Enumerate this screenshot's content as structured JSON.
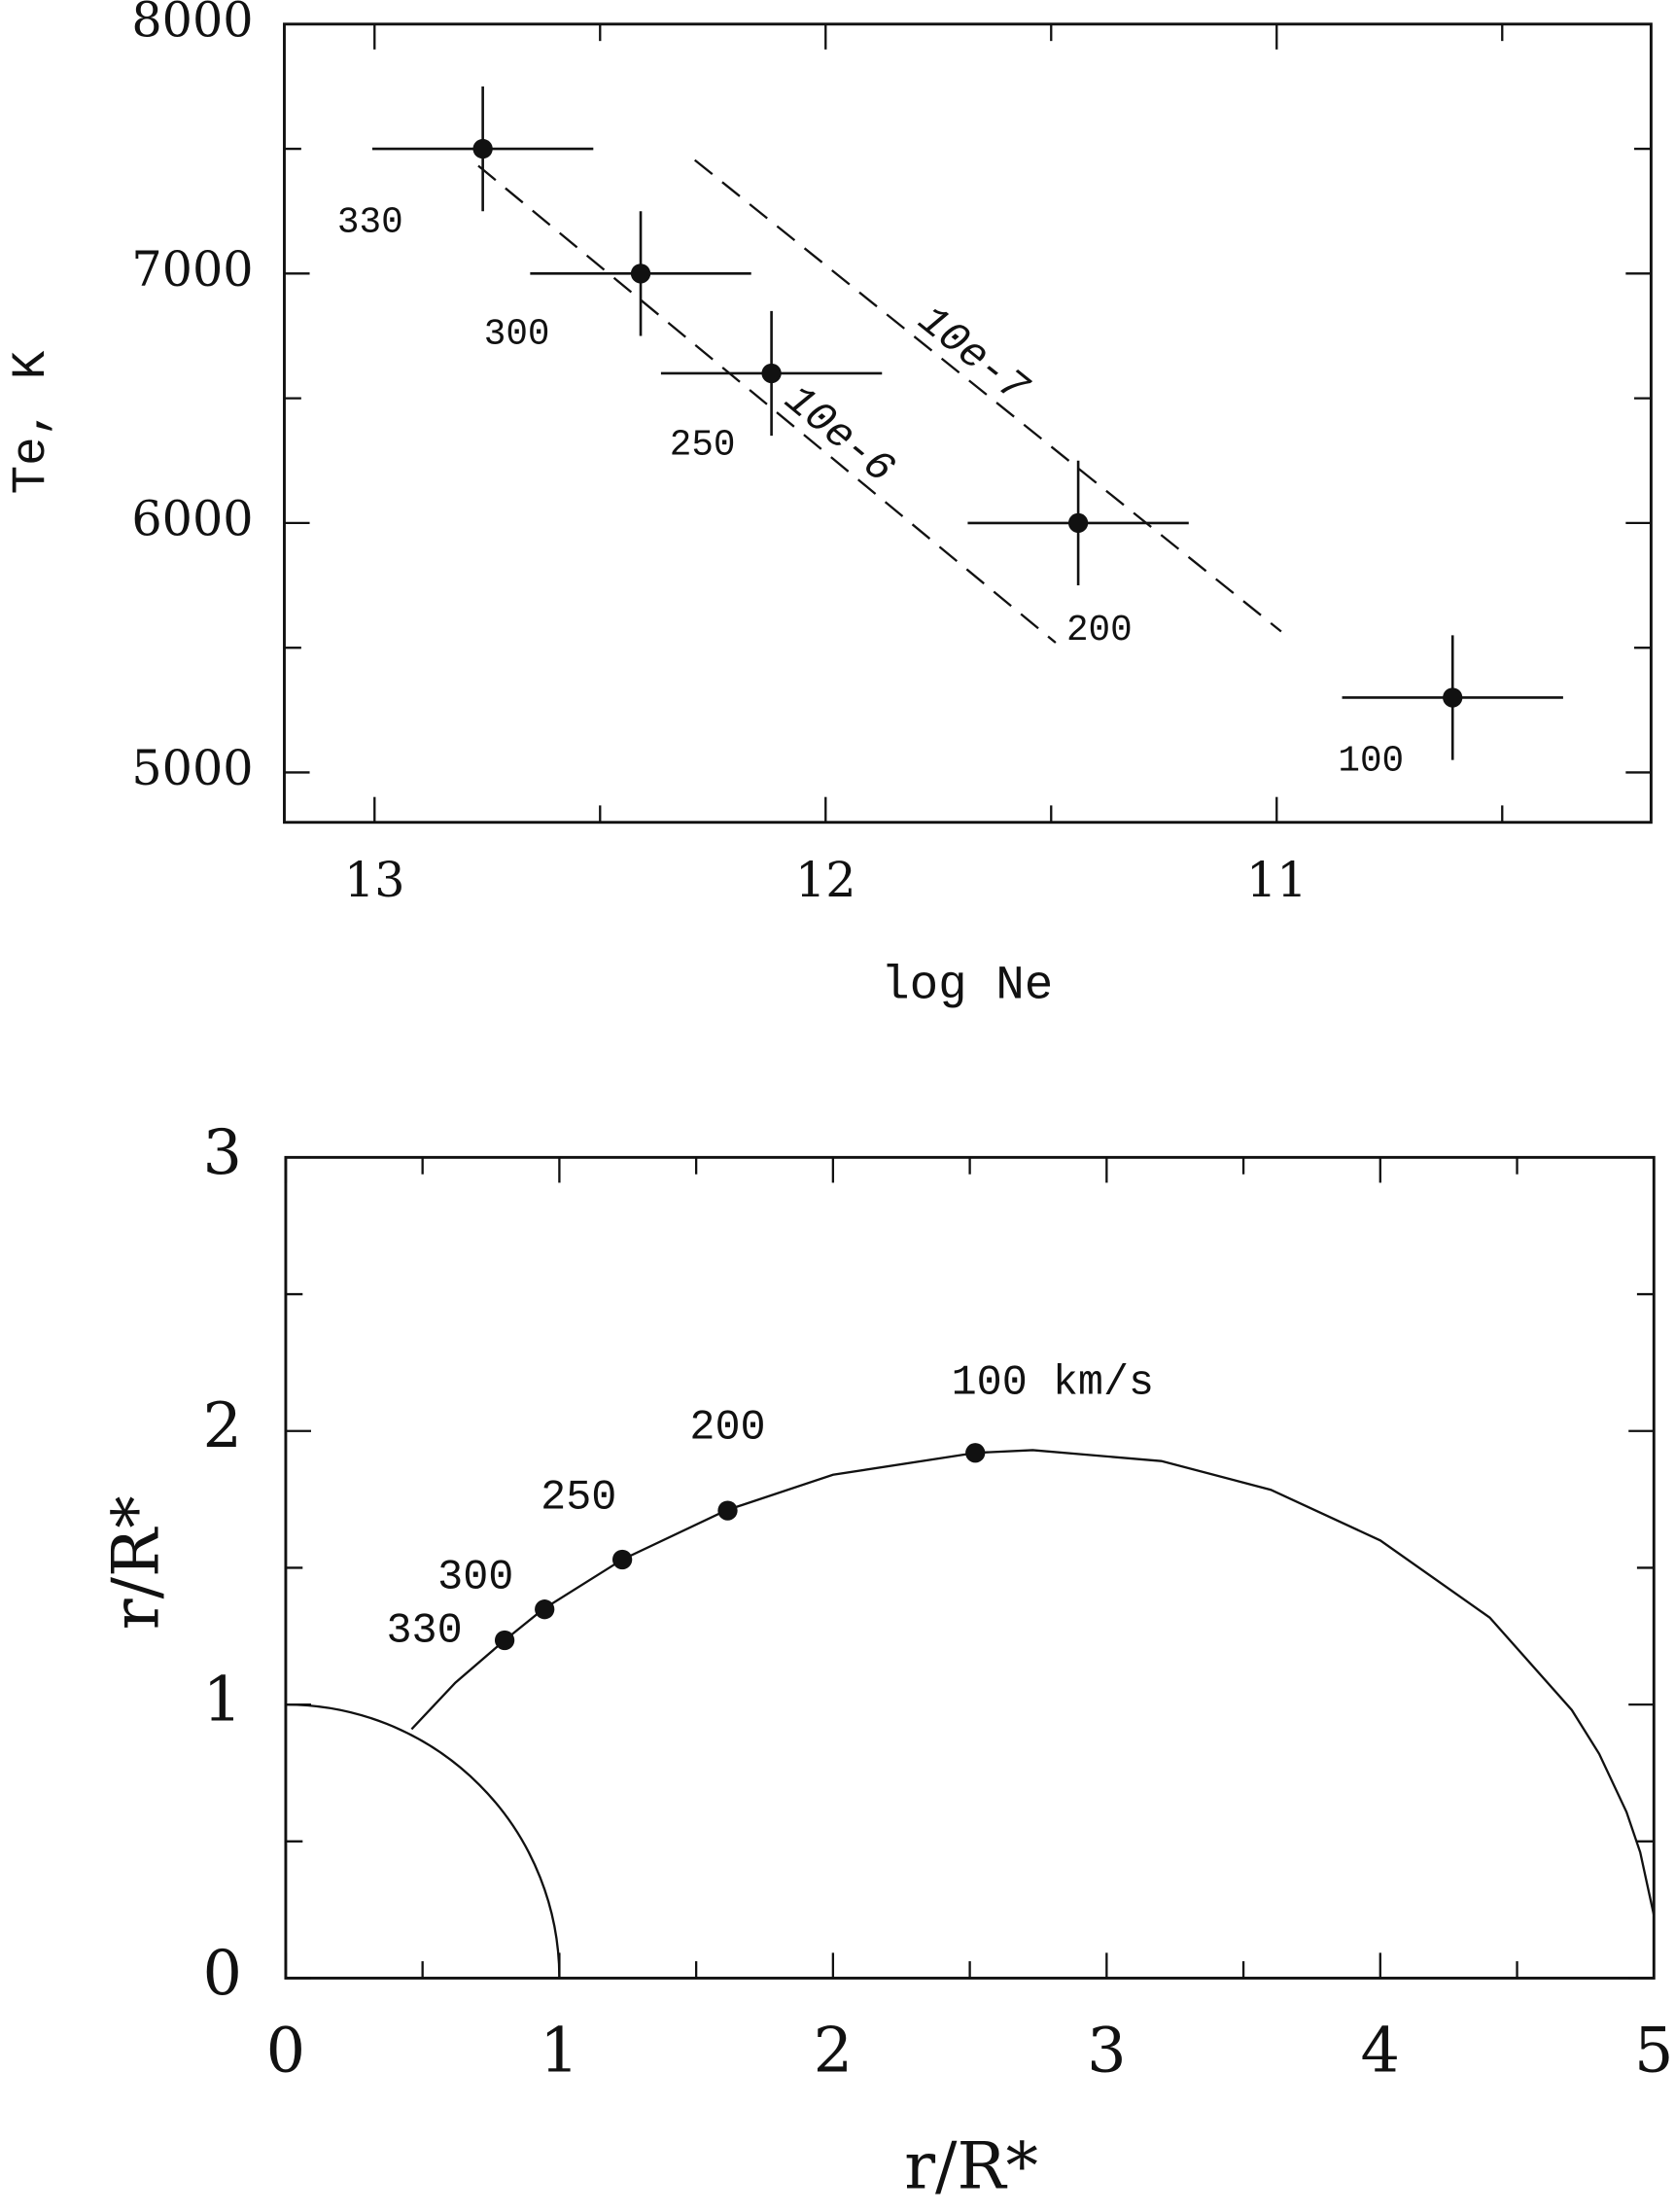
{
  "chart_data": [
    {
      "type": "scatter",
      "x_label": "log Ne",
      "y_label": "Te, K",
      "xlim": [
        13.2,
        10.17
      ],
      "ylim": [
        4800,
        8000
      ],
      "xticks": [
        13,
        12,
        11
      ],
      "x_minor_ticks": [
        12.5,
        11.5,
        10.5
      ],
      "yticks": [
        5000,
        6000,
        7000,
        8000
      ],
      "y_minor_ticks": [
        5500,
        6500,
        7500
      ],
      "series": [
        {
          "color": "#111111",
          "x": [
            12.76,
            12.41,
            12.12,
            11.44,
            10.61
          ],
          "values": [
            7500,
            7000,
            6600,
            6000,
            5300
          ],
          "x_err": [
            0.245,
            0.245,
            0.245,
            0.245,
            0.245
          ],
          "y_err": [
            250,
            250,
            250,
            250,
            250
          ],
          "labels": [
            "330",
            "300",
            "250",
            "200",
            "100"
          ]
        }
      ],
      "lines": [
        {
          "label": "10e-6",
          "x": [
            12.77,
            11.49
          ],
          "y": [
            7432,
            5520
          ]
        },
        {
          "label": "10e-7",
          "x": [
            12.29,
            10.99
          ],
          "y": [
            7455,
            5565
          ]
        }
      ]
    },
    {
      "type": "scatter",
      "x_label": "r/R*",
      "y_label": "r/R*",
      "xlim": [
        0,
        5
      ],
      "ylim": [
        0,
        3
      ],
      "xticks": [
        0,
        1,
        2,
        3,
        4,
        5
      ],
      "x_minor_ticks": [
        0.5,
        1.5,
        2.5,
        3.5,
        4.5
      ],
      "yticks": [
        0,
        1,
        2,
        3
      ],
      "y_minor_ticks": [
        0.5,
        1.5,
        2.5
      ],
      "inner_circle_radius": 1,
      "curve": {
        "x": [
          0.46,
          0.62,
          0.8,
          0.94,
          1.23,
          1.61,
          2.0,
          2.52,
          2.73,
          3.2,
          3.6,
          4.0,
          4.4,
          4.7,
          4.8,
          4.9,
          4.95,
          5.0
        ],
        "y": [
          0.91,
          1.08,
          1.235,
          1.348,
          1.53,
          1.71,
          1.84,
          1.92,
          1.93,
          1.89,
          1.785,
          1.6,
          1.318,
          0.98,
          0.82,
          0.607,
          0.46,
          0.23
        ]
      },
      "series": [
        {
          "color": "#111111",
          "x": [
            0.8,
            0.946,
            1.23,
            1.615,
            2.52
          ],
          "values": [
            1.235,
            1.348,
            1.53,
            1.709,
            1.92
          ],
          "labels": [
            "330",
            "300",
            "250",
            "200",
            "100 km/s"
          ]
        }
      ]
    }
  ]
}
